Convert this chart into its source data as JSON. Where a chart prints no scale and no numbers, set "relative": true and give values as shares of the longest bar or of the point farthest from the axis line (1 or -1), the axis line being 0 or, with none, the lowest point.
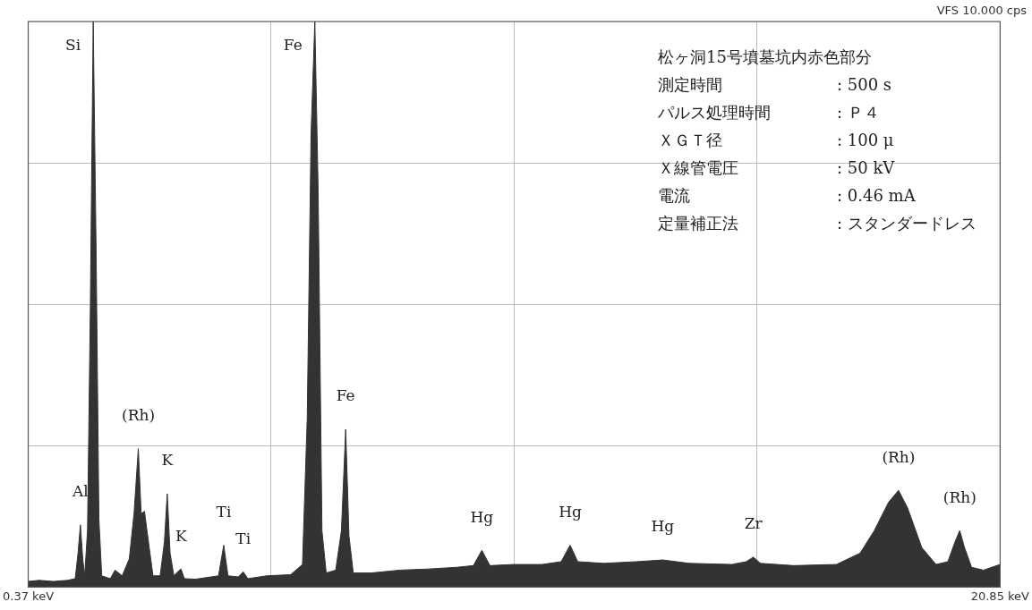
{
  "chart_data": {
    "type": "area",
    "relative": true,
    "color": "#333333",
    "grid": true,
    "legend": false,
    "xlim": [
      0.37,
      20.85
    ],
    "xticks": [
      {
        "value": 0.37,
        "label": "0.37 keV"
      },
      {
        "value": 5.49,
        "label": null
      },
      {
        "value": 10.61,
        "label": null
      },
      {
        "value": 15.73,
        "label": null
      },
      {
        "value": 20.85,
        "label": "20.85 keV"
      }
    ],
    "x": [
      0.37,
      0.6,
      0.9,
      1.2,
      1.36,
      1.42,
      1.47,
      1.52,
      1.56,
      1.62,
      1.68,
      1.74,
      1.8,
      1.86,
      1.92,
      2.1,
      2.2,
      2.35,
      2.5,
      2.6,
      2.69,
      2.75,
      2.82,
      2.92,
      3.0,
      3.15,
      3.24,
      3.3,
      3.36,
      3.44,
      3.53,
      3.59,
      3.66,
      3.9,
      4.38,
      4.49,
      4.58,
      4.8,
      4.9,
      5.0,
      5.4,
      5.9,
      6.15,
      6.25,
      6.33,
      6.41,
      6.48,
      6.56,
      6.65,
      6.85,
      6.97,
      7.06,
      7.13,
      7.22,
      7.6,
      8.2,
      8.8,
      9.4,
      9.75,
      9.93,
      10.1,
      10.6,
      11.2,
      11.6,
      11.79,
      11.95,
      12.5,
      13.2,
      13.74,
      14.3,
      15.2,
      15.5,
      15.65,
      15.8,
      16.5,
      17.4,
      17.9,
      18.2,
      18.5,
      18.71,
      18.9,
      19.2,
      19.5,
      19.75,
      19.9,
      20.0,
      20.1,
      20.25,
      20.5,
      20.85
    ],
    "values": [
      0.01,
      0.012,
      0.01,
      0.012,
      0.015,
      0.06,
      0.11,
      0.05,
      0.02,
      0.1,
      0.5,
      1,
      0.6,
      0.12,
      0.02,
      0.015,
      0.03,
      0.02,
      0.05,
      0.13,
      0.245,
      0.13,
      0.134,
      0.07,
      0.02,
      0.02,
      0.08,
      0.165,
      0.06,
      0.02,
      0.028,
      0.032,
      0.015,
      0.014,
      0.02,
      0.074,
      0.02,
      0.018,
      0.027,
      0.015,
      0.02,
      0.022,
      0.04,
      0.3,
      0.8,
      1,
      0.7,
      0.1,
      0.025,
      0.03,
      0.1,
      0.279,
      0.09,
      0.025,
      0.025,
      0.03,
      0.032,
      0.035,
      0.038,
      0.065,
      0.038,
      0.04,
      0.04,
      0.045,
      0.074,
      0.045,
      0.042,
      0.045,
      0.048,
      0.042,
      0.04,
      0.045,
      0.053,
      0.042,
      0.038,
      0.04,
      0.06,
      0.1,
      0.15,
      0.171,
      0.14,
      0.07,
      0.04,
      0.045,
      0.08,
      0.1,
      0.07,
      0.035,
      0.03,
      0.04
    ],
    "annotations": [
      {
        "text": "Si",
        "x": 1.74,
        "y": 1
      },
      {
        "text": "Fe",
        "x": 6.41,
        "y": 1
      },
      {
        "text": "(Rh)",
        "x": 2.69,
        "y": 0.245
      },
      {
        "text": "Al",
        "x": 1.47,
        "y": 0.11
      },
      {
        "text": "K",
        "x": 3.3,
        "y": 0.165
      },
      {
        "text": "K",
        "x": 3.59,
        "y": 0.032
      },
      {
        "text": "Ti",
        "x": 4.49,
        "y": 0.074
      },
      {
        "text": "Ti",
        "x": 4.9,
        "y": 0.027
      },
      {
        "text": "Fe",
        "x": 7.06,
        "y": 0.279
      },
      {
        "text": "Hg",
        "x": 9.93,
        "y": 0.065
      },
      {
        "text": "Hg",
        "x": 11.79,
        "y": 0.074
      },
      {
        "text": "Hg",
        "x": 13.74,
        "y": 0.048
      },
      {
        "text": "Zr",
        "x": 15.65,
        "y": 0.053
      },
      {
        "text": "(Rh)",
        "x": 18.71,
        "y": 0.171
      },
      {
        "text": "(Rh)",
        "x": 20.0,
        "y": 0.1
      },
      "VFS 10.000 cps",
      "松ヶ洞15号墳墓坑内赤色部分",
      "測定時間\t: 500 s",
      "パルス処理時間\t: Ｐ４",
      "ＸＧＴ径\t: 100 μ",
      "Ｘ線管電圧\t: 50 kV",
      "電流\t: 0.46 mA",
      "定量補正法\t: スタンダードレス"
    ]
  }
}
